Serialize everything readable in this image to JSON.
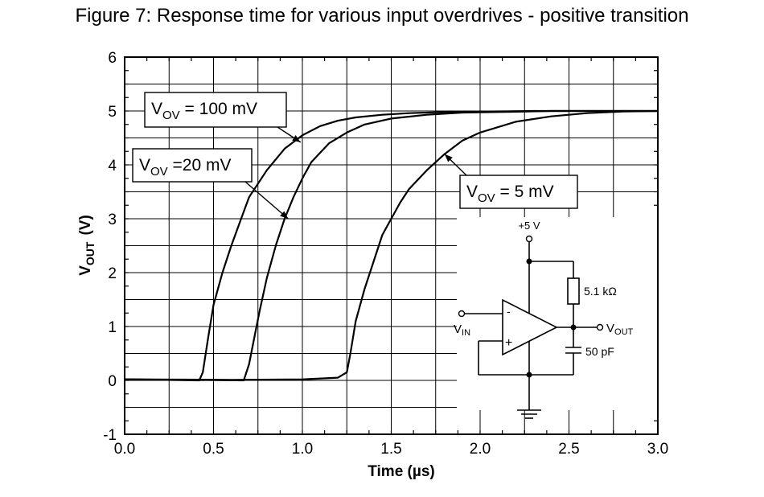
{
  "figure_title": "Figure 7: Response time for various input overdrives - positive transition",
  "chart_data": {
    "type": "line",
    "title": "Figure 7: Response time for various input overdrives - positive transition",
    "xlabel": "Time (µs)",
    "ylabel": {
      "main": "V",
      "sub": "OUT",
      "unit": "(V)"
    },
    "xlim": [
      0.0,
      3.0
    ],
    "ylim": [
      -1,
      6
    ],
    "grid": true,
    "x_ticks": [
      0.0,
      0.5,
      1.0,
      1.5,
      2.0,
      2.5,
      3.0
    ],
    "x_tick_labels": [
      "0.0",
      "0.5",
      "1.0",
      "1.5",
      "2.0",
      "2.5",
      "3.0"
    ],
    "y_ticks": [
      -1,
      0,
      1,
      2,
      3,
      4,
      5,
      6
    ],
    "y_tick_labels": [
      "-1",
      "0",
      "1",
      "2",
      "3",
      "4",
      "5",
      "6"
    ],
    "series": [
      {
        "name": "VOV = 100 mV",
        "label": {
          "main": "V",
          "sub": "OV",
          "rest": " = 100 mV"
        },
        "x": [
          0.0,
          0.2,
          0.42,
          0.44,
          0.47,
          0.5,
          0.55,
          0.6,
          0.65,
          0.7,
          0.8,
          0.9,
          1.0,
          1.1,
          1.2,
          1.3,
          1.45,
          1.6,
          1.8,
          2.0,
          2.3,
          2.6,
          3.0
        ],
        "values": [
          0.02,
          0.01,
          0.0,
          0.15,
          0.8,
          1.4,
          2.0,
          2.5,
          2.95,
          3.4,
          3.9,
          4.3,
          4.55,
          4.72,
          4.82,
          4.88,
          4.93,
          4.96,
          4.98,
          4.99,
          5.0,
          5.0,
          5.0
        ]
      },
      {
        "name": "VOV = 20 mV",
        "label": {
          "main": "V",
          "sub": "OV",
          "rest": " =20 mV"
        },
        "x": [
          0.0,
          0.3,
          0.67,
          0.7,
          0.73,
          0.76,
          0.8,
          0.85,
          0.9,
          0.95,
          1.0,
          1.05,
          1.15,
          1.25,
          1.35,
          1.5,
          1.7,
          1.9,
          2.1,
          2.4,
          2.7,
          3.0
        ],
        "values": [
          0.02,
          0.01,
          0.0,
          0.3,
          0.8,
          1.3,
          1.9,
          2.5,
          3.0,
          3.4,
          3.75,
          4.05,
          4.4,
          4.6,
          4.75,
          4.86,
          4.93,
          4.97,
          4.98,
          5.0,
          5.0,
          5.0
        ]
      },
      {
        "name": "VOV = 5 mV",
        "label": {
          "main": "V",
          "sub": "OV",
          "rest": " = 5 mV"
        },
        "x": [
          0.0,
          0.6,
          1.0,
          1.2,
          1.25,
          1.27,
          1.3,
          1.35,
          1.4,
          1.45,
          1.5,
          1.55,
          1.6,
          1.7,
          1.8,
          1.9,
          2.0,
          2.2,
          2.4,
          2.6,
          2.8,
          3.0
        ],
        "values": [
          0.02,
          0.01,
          0.02,
          0.05,
          0.15,
          0.5,
          1.1,
          1.7,
          2.2,
          2.7,
          3.0,
          3.3,
          3.55,
          3.9,
          4.2,
          4.45,
          4.6,
          4.8,
          4.9,
          4.96,
          4.99,
          5.0
        ]
      }
    ]
  },
  "inset_circuit": {
    "supply_label": "+5 V",
    "resistor_label": "5.1 kΩ",
    "capacitor_label": "50 pF",
    "input_label": {
      "main": "V",
      "sub": "IN"
    },
    "output_label": {
      "main": "V",
      "sub": "OUT"
    },
    "minus_sign": "-",
    "plus_sign": "+"
  }
}
